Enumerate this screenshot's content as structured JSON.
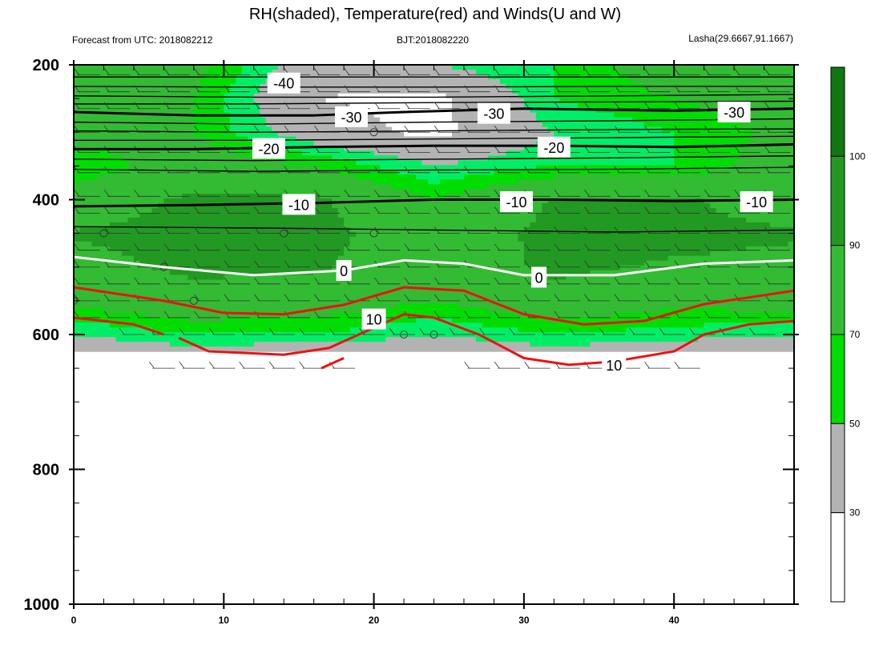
{
  "chart_data": {
    "type": "heatmap",
    "title": "RH(shaded), Temperature(red) and Winds(U and W)",
    "subtitle_left": "Forecast from UTC: 2018082212",
    "subtitle_center": "BJT:2018082220",
    "subtitle_right": "Lasha(29.6667,91.1667)",
    "xlabel": "",
    "ylabel": "",
    "x_range": [
      0,
      48
    ],
    "y_range": [
      200,
      1000
    ],
    "y_ticks": [
      "200",
      "400",
      "600",
      "800",
      "1000"
    ],
    "x_ticks": [
      "0",
      "10",
      "20",
      "30",
      "40"
    ],
    "colorbar": {
      "levels": [
        "30",
        "50",
        "70",
        "90",
        "100"
      ],
      "colors": [
        "#ffffff",
        "#b3b3b3",
        "#00ee66",
        "#00dd00",
        "#33bb33",
        "#229922",
        "#117711"
      ]
    },
    "rh_field": {
      "x": [
        0,
        8,
        16,
        24,
        32,
        40,
        48
      ],
      "levels": [
        200,
        250,
        300,
        350,
        400,
        450,
        500,
        550,
        600,
        625
      ],
      "values": [
        [
          80,
          75,
          40,
          50,
          60,
          80,
          80
        ],
        [
          80,
          70,
          30,
          25,
          60,
          70,
          80
        ],
        [
          80,
          70,
          40,
          25,
          50,
          60,
          75
        ],
        [
          60,
          80,
          70,
          50,
          60,
          60,
          80
        ],
        [
          80,
          93,
          93,
          70,
          91,
          93,
          80
        ],
        [
          91,
          95,
          95,
          80,
          94,
          95,
          92
        ],
        [
          85,
          93,
          92,
          80,
          93,
          88,
          85
        ],
        [
          75,
          85,
          80,
          70,
          85,
          75,
          80
        ],
        [
          50,
          60,
          60,
          50,
          60,
          55,
          50
        ],
        [
          40,
          45,
          40,
          40,
          45,
          40,
          40
        ]
      ]
    },
    "temperature_contours": [
      {
        "label": "-40",
        "level": -40,
        "x": [
          0,
          48
        ],
        "y": [
          208,
          208
        ],
        "label_x": 14,
        "label_y": 227
      },
      {
        "label": "-30",
        "level": -30,
        "x": [
          0,
          8,
          16,
          22,
          30,
          40,
          48
        ],
        "y": [
          270,
          275,
          275,
          270,
          265,
          268,
          265
        ],
        "label_x": 18.5,
        "label_y": 277
      },
      {
        "label": "-30",
        "level": -30,
        "x": [
          0,
          48
        ],
        "y": [
          270,
          270
        ],
        "label_x": 28,
        "label_y": 272
      },
      {
        "label": "-30",
        "level": -30,
        "x": [
          0,
          48
        ],
        "y": [
          270,
          270
        ],
        "label_x": 44,
        "label_y": 270
      },
      {
        "label": "-20",
        "level": -20,
        "x": [
          0,
          8,
          16,
          24,
          32,
          40,
          48
        ],
        "y": [
          325,
          325,
          322,
          320,
          320,
          322,
          318
        ],
        "label_x": 13,
        "label_y": 324
      },
      {
        "label": "-20",
        "level": -20,
        "x": [
          0,
          48
        ],
        "y": [
          320,
          320
        ],
        "label_x": 32,
        "label_y": 322
      },
      {
        "label": "-10",
        "level": -10,
        "x": [
          0,
          8,
          16,
          24,
          32,
          40,
          48
        ],
        "y": [
          410,
          408,
          405,
          400,
          400,
          402,
          400
        ],
        "label_x": 15,
        "label_y": 407
      },
      {
        "label": "-10",
        "level": -10,
        "x": [
          0,
          48
        ],
        "y": [
          400,
          400
        ],
        "label_x": 29.5,
        "label_y": 403
      },
      {
        "label": "-10",
        "level": -10,
        "x": [
          0,
          48
        ],
        "y": [
          400,
          400
        ],
        "label_x": 45.5,
        "label_y": 403
      },
      {
        "label": "0",
        "level": 0,
        "x": [
          0,
          6,
          12,
          18,
          22,
          26,
          30,
          36,
          42,
          48
        ],
        "y": [
          485,
          500,
          512,
          505,
          490,
          495,
          512,
          512,
          495,
          490
        ],
        "label_x": 18,
        "label_y": 505
      },
      {
        "label": "0",
        "level": 0,
        "x": [
          0,
          48
        ],
        "y": [
          490,
          490
        ],
        "label_x": 31,
        "label_y": 515
      },
      {
        "label": "10",
        "level": 10,
        "x": [
          0,
          6,
          10,
          14,
          18,
          22,
          26,
          30,
          34,
          38,
          42,
          48
        ],
        "y": [
          530,
          550,
          568,
          570,
          556,
          530,
          535,
          570,
          585,
          580,
          555,
          535
        ],
        "label_x": 20,
        "label_y": 577
      },
      {
        "label": "10",
        "level": 10,
        "x": [
          0,
          4,
          6
        ],
        "y": [
          575,
          585,
          600
        ],
        "label_x": 36,
        "label_y": 645
      },
      {
        "label": "",
        "level": 10,
        "x": [
          7,
          9,
          14,
          17,
          20,
          22,
          24,
          27,
          30,
          33,
          36,
          40,
          42,
          45,
          48
        ],
        "y": [
          605,
          625,
          630,
          620,
          590,
          570,
          575,
          600,
          635,
          645,
          640,
          625,
          600,
          585,
          580
        ],
        "label_x": 0,
        "label_y": 0
      },
      {
        "label": "",
        "level": 10,
        "x": [
          16.5,
          18
        ],
        "y": [
          650,
          635
        ],
        "label_x": 0,
        "label_y": 0
      }
    ],
    "other_isotherms": {
      "x": [
        0,
        12,
        24,
        36,
        48
      ],
      "levels_y": [
        [
          218,
          218,
          218,
          218,
          218
        ],
        [
          232,
          233,
          233,
          232,
          232
        ],
        [
          246,
          248,
          248,
          246,
          244
        ],
        [
          258,
          258,
          256,
          255,
          254
        ],
        [
          285,
          288,
          285,
          283,
          280
        ],
        [
          298,
          300,
          298,
          296,
          295
        ],
        [
          312,
          312,
          310,
          308,
          306
        ],
        [
          340,
          342,
          340,
          338,
          335
        ],
        [
          355,
          358,
          356,
          355,
          352
        ],
        [
          440,
          442,
          445,
          448,
          445
        ]
      ]
    },
    "wind_rows": [
      {
        "y": 215,
        "x0": 1,
        "x1": 47
      },
      {
        "y": 240,
        "x0": 1,
        "x1": 47
      },
      {
        "y": 265,
        "x0": 1,
        "x1": 47
      },
      {
        "y": 300,
        "x0": 1,
        "x1": 47
      },
      {
        "y": 330,
        "x0": 1,
        "x1": 47
      },
      {
        "y": 360,
        "x0": 1,
        "x1": 47
      },
      {
        "y": 395,
        "x0": 1,
        "x1": 47
      },
      {
        "y": 420,
        "x0": 1,
        "x1": 47
      },
      {
        "y": 450,
        "x0": 1,
        "x1": 47
      },
      {
        "y": 475,
        "x0": 1,
        "x1": 47
      },
      {
        "y": 500,
        "x0": 1,
        "x1": 47
      },
      {
        "y": 525,
        "x0": 1,
        "x1": 47
      },
      {
        "y": 550,
        "x0": 1,
        "x1": 47
      },
      {
        "y": 575,
        "x0": 1,
        "x1": 47
      },
      {
        "y": 600,
        "x0": 4,
        "x1": 47
      },
      {
        "y": 650,
        "x0": 6,
        "x1": 18
      },
      {
        "y": 650,
        "x0": 27,
        "x1": 41
      }
    ],
    "calm_circles": [
      {
        "x": 20,
        "y": 300
      },
      {
        "x": 2,
        "y": 450
      },
      {
        "x": 14,
        "y": 450
      },
      {
        "x": 20,
        "y": 450
      },
      {
        "x": 6,
        "y": 500
      },
      {
        "x": 8,
        "y": 550
      },
      {
        "x": 22,
        "y": 600
      },
      {
        "x": 24,
        "y": 600
      },
      {
        "x": 0,
        "y": 550
      }
    ]
  }
}
